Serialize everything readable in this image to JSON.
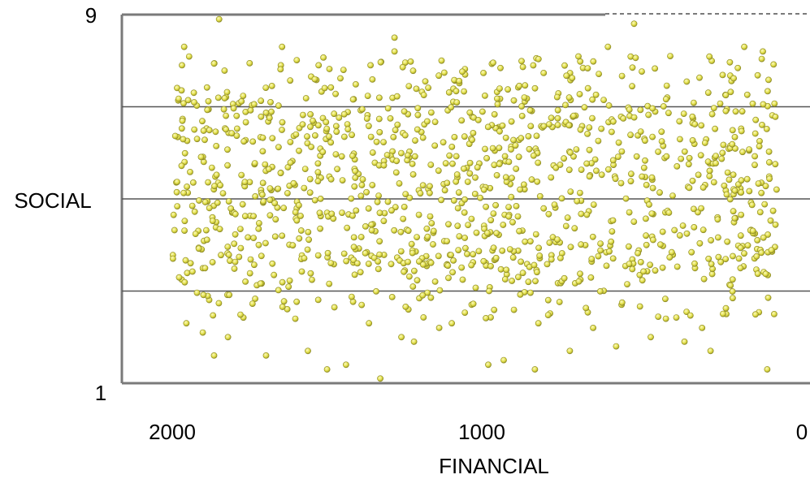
{
  "chart_data": {
    "type": "scatter",
    "title": "",
    "xlabel": "FINANCIAL",
    "ylabel": "SOCIAL",
    "xlim": [
      2000,
      0
    ],
    "ylim": [
      1,
      9
    ],
    "x_reversed": true,
    "x_ticks": [
      "2000",
      "1000",
      "0"
    ],
    "y_ticks": [
      "9",
      "1"
    ],
    "grid": "horizontal lines at 3, 5, 7",
    "gridlines_y": [
      3,
      5,
      7
    ],
    "legend": "none",
    "marker_color": "#e3e04a",
    "marker_edge_color": "#8a8722",
    "point_count_approx": 1250,
    "seed": 20240611,
    "points": [
      [
        1851,
        8.9
      ],
      [
        1339,
        1.1
      ],
      [
        533,
        8.8
      ],
      [
        616,
        8.3
      ],
      [
        1962,
        8.3
      ],
      [
        1969,
        7.9
      ],
      [
        1651,
        8.3
      ],
      [
        1655,
        7.9
      ],
      [
        1294,
        8.5
      ],
      [
        1294,
        8.2
      ],
      [
        1370,
        7.9
      ],
      [
        1456,
        7.8
      ],
      [
        418,
        8.1
      ],
      [
        183,
        8.3
      ],
      [
        124,
        8.2
      ],
      [
        1535,
        7.9
      ],
      [
        996,
        1.4
      ],
      [
        848,
        1.3
      ],
      [
        1508,
        1.3
      ],
      [
        1448,
        1.4
      ],
      [
        1867,
        1.6
      ],
      [
        1702,
        1.6
      ],
      [
        1569,
        1.7
      ],
      [
        1232,
        1.9
      ],
      [
        947,
        1.5
      ],
      [
        737,
        1.7
      ],
      [
        590,
        1.8
      ],
      [
        480,
        2.0
      ],
      [
        373,
        1.9
      ],
      [
        290,
        1.7
      ],
      [
        110,
        1.3
      ],
      [
        1955,
        2.3
      ],
      [
        1903,
        2.1
      ],
      [
        1823,
        2.0
      ],
      [
        1609,
        2.4
      ],
      [
        1375,
        2.3
      ],
      [
        1272,
        2.0
      ],
      [
        1152,
        2.2
      ],
      [
        1112,
        2.3
      ],
      [
        837,
        2.3
      ],
      [
        663,
        2.2
      ],
      [
        432,
        2.4
      ],
      [
        317,
        2.2
      ],
      [
        240,
        2.5
      ],
      [
        88,
        2.5
      ]
    ],
    "band_density": {
      "y_range_dense": [
        3.3,
        7.3
      ],
      "x_range": [
        2000,
        80
      ]
    }
  }
}
